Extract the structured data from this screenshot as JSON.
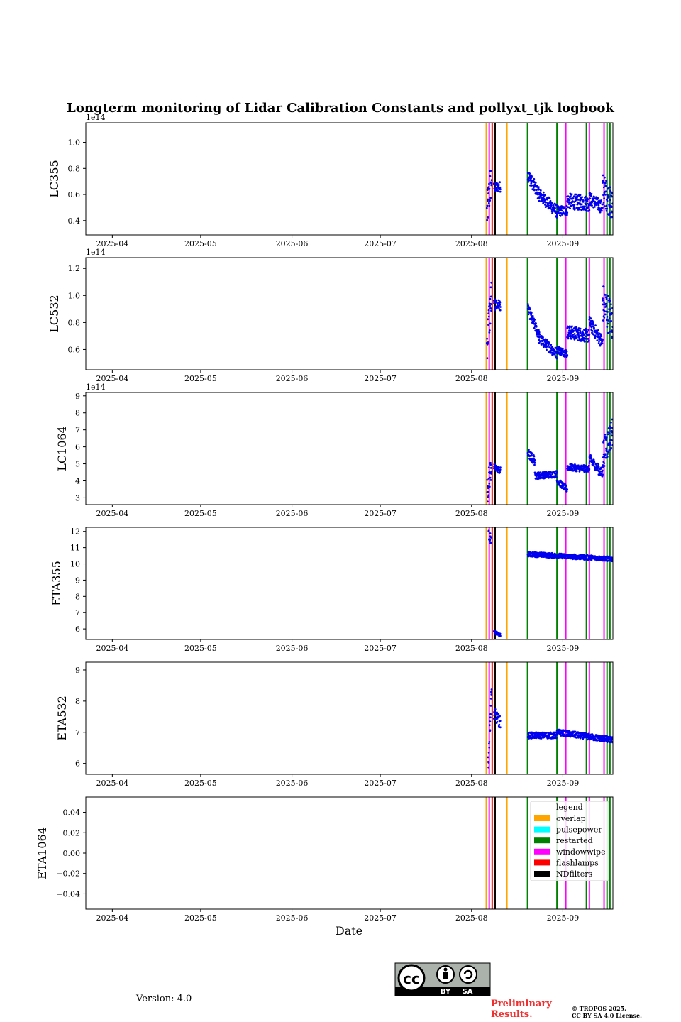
{
  "title": "Longterm monitoring of Lidar Calibration Constants and pollyxt_tjk logbook",
  "x_axis": {
    "label": "Date",
    "ticks": [
      {
        "day": 0,
        "label": "2025-04"
      },
      {
        "day": 30,
        "label": "2025-05"
      },
      {
        "day": 61,
        "label": "2025-06"
      },
      {
        "day": 91,
        "label": "2025-07"
      },
      {
        "day": 122,
        "label": "2025-08"
      },
      {
        "day": 153,
        "label": "2025-09"
      }
    ],
    "range_days": [
      -9,
      170
    ]
  },
  "logbook_events": {
    "overlap": {
      "color": "#ffa500",
      "days": [
        127,
        130,
        134
      ]
    },
    "restarted": {
      "color": "#008000",
      "days": [
        141,
        151,
        161,
        168,
        169
      ]
    },
    "windowwipe": {
      "color": "#ff00ff",
      "days": [
        128,
        154,
        162,
        167
      ]
    },
    "flashlamps": {
      "color": "#ff0000",
      "days": [
        129
      ]
    },
    "NDfilters": {
      "color": "#000000",
      "days": [
        130
      ]
    }
  },
  "legend": {
    "title": "legend",
    "items": [
      {
        "label": "overlap",
        "color": "#ffa500"
      },
      {
        "label": "pulsepower",
        "color": "#00ffff"
      },
      {
        "label": "restarted",
        "color": "#008000"
      },
      {
        "label": "windowwipe",
        "color": "#ff00ff"
      },
      {
        "label": "flashlamps",
        "color": "#ff0000"
      },
      {
        "label": "NDfilters",
        "color": "#000000"
      }
    ]
  },
  "chart_data": [
    {
      "type": "scatter",
      "ylabel": "LC355",
      "exponent": "1e14",
      "ylim": [
        0.29,
        1.15
      ],
      "yticks": [
        {
          "v": 0.4,
          "t": "0.4"
        },
        {
          "v": 0.6,
          "t": "0.6"
        },
        {
          "v": 0.8,
          "t": "0.8"
        },
        {
          "v": 1.0,
          "t": "1.0"
        }
      ],
      "segments": [
        {
          "from": 127.2,
          "to": 128.8,
          "start": 0.45,
          "end": 0.75,
          "noise": 0.15
        },
        {
          "from": 129.6,
          "to": 131.8,
          "start": 0.65,
          "end": 0.66,
          "noise": 0.04
        },
        {
          "from": 141.1,
          "to": 145.0,
          "start": 0.75,
          "end": 0.6,
          "noise": 0.05
        },
        {
          "from": 145.0,
          "to": 151.0,
          "start": 0.6,
          "end": 0.47,
          "noise": 0.05
        },
        {
          "from": 151.0,
          "to": 154.5,
          "start": 0.47,
          "end": 0.48,
          "noise": 0.04
        },
        {
          "from": 154.5,
          "to": 162.0,
          "start": 0.55,
          "end": 0.53,
          "noise": 0.06
        },
        {
          "from": 162.0,
          "to": 166.5,
          "start": 0.57,
          "end": 0.5,
          "noise": 0.05
        },
        {
          "from": 166.5,
          "to": 170.0,
          "start": 0.65,
          "end": 0.5,
          "noise": 0.12
        }
      ]
    },
    {
      "type": "scatter",
      "ylabel": "LC532",
      "exponent": "1e14",
      "ylim": [
        0.45,
        1.28
      ],
      "yticks": [
        {
          "v": 0.6,
          "t": "0.6"
        },
        {
          "v": 0.8,
          "t": "0.8"
        },
        {
          "v": 1.0,
          "t": "1.0"
        },
        {
          "v": 1.2,
          "t": "1.2"
        }
      ],
      "segments": [
        {
          "from": 127.2,
          "to": 128.8,
          "start": 0.65,
          "end": 1.0,
          "noise": 0.15
        },
        {
          "from": 129.6,
          "to": 131.8,
          "start": 0.93,
          "end": 0.93,
          "noise": 0.04
        },
        {
          "from": 141.1,
          "to": 145.0,
          "start": 0.9,
          "end": 0.7,
          "noise": 0.04
        },
        {
          "from": 145.0,
          "to": 151.0,
          "start": 0.68,
          "end": 0.57,
          "noise": 0.04
        },
        {
          "from": 151.0,
          "to": 154.5,
          "start": 0.6,
          "end": 0.57,
          "noise": 0.03
        },
        {
          "from": 154.5,
          "to": 162.0,
          "start": 0.73,
          "end": 0.7,
          "noise": 0.05
        },
        {
          "from": 162.0,
          "to": 166.5,
          "start": 0.8,
          "end": 0.65,
          "noise": 0.05
        },
        {
          "from": 166.5,
          "to": 170.0,
          "start": 0.95,
          "end": 0.8,
          "noise": 0.15
        }
      ]
    },
    {
      "type": "scatter",
      "ylabel": "LC1064",
      "exponent": "1e14",
      "ylim": [
        2.6,
        9.2
      ],
      "yticks": [
        {
          "v": 3,
          "t": "3"
        },
        {
          "v": 4,
          "t": "4"
        },
        {
          "v": 5,
          "t": "5"
        },
        {
          "v": 6,
          "t": "6"
        },
        {
          "v": 7,
          "t": "7"
        },
        {
          "v": 8,
          "t": "8"
        },
        {
          "v": 9,
          "t": "9"
        }
      ],
      "segments": [
        {
          "from": 127.2,
          "to": 128.8,
          "start": 3.3,
          "end": 5.0,
          "noise": 0.8
        },
        {
          "from": 129.6,
          "to": 131.8,
          "start": 4.8,
          "end": 4.6,
          "noise": 0.2
        },
        {
          "from": 141.1,
          "to": 143.5,
          "start": 5.6,
          "end": 5.2,
          "noise": 0.3
        },
        {
          "from": 143.5,
          "to": 151.0,
          "start": 4.3,
          "end": 4.4,
          "noise": 0.2
        },
        {
          "from": 151.0,
          "to": 154.5,
          "start": 4.0,
          "end": 3.5,
          "noise": 0.2
        },
        {
          "from": 154.5,
          "to": 162.0,
          "start": 4.8,
          "end": 4.7,
          "noise": 0.2
        },
        {
          "from": 162.0,
          "to": 166.5,
          "start": 5.3,
          "end": 4.4,
          "noise": 0.3
        },
        {
          "from": 166.5,
          "to": 170.0,
          "start": 5.5,
          "end": 7.0,
          "noise": 0.9
        }
      ]
    },
    {
      "type": "scatter",
      "ylabel": "ETA355",
      "exponent": "",
      "ylim": [
        5.35,
        12.25
      ],
      "yticks": [
        {
          "v": 6,
          "t": "6"
        },
        {
          "v": 7,
          "t": "7"
        },
        {
          "v": 8,
          "t": "8"
        },
        {
          "v": 9,
          "t": "9"
        },
        {
          "v": 10,
          "t": "10"
        },
        {
          "v": 11,
          "t": "11"
        },
        {
          "v": 12,
          "t": "12"
        }
      ],
      "segments": [
        {
          "from": 127.8,
          "to": 128.6,
          "start": 11.8,
          "end": 11.5,
          "noise": 0.3
        },
        {
          "from": 129.6,
          "to": 131.8,
          "start": 5.8,
          "end": 5.6,
          "noise": 0.1
        },
        {
          "from": 141.1,
          "to": 151.0,
          "start": 10.6,
          "end": 10.5,
          "noise": 0.15
        },
        {
          "from": 151.0,
          "to": 170.0,
          "start": 10.5,
          "end": 10.3,
          "noise": 0.15
        }
      ]
    },
    {
      "type": "scatter",
      "ylabel": "ETA532",
      "exponent": "",
      "ylim": [
        5.65,
        9.25
      ],
      "yticks": [
        {
          "v": 6,
          "t": "6"
        },
        {
          "v": 7,
          "t": "7"
        },
        {
          "v": 8,
          "t": "8"
        },
        {
          "v": 9,
          "t": "9"
        }
      ],
      "segments": [
        {
          "from": 127.6,
          "to": 128.8,
          "start": 5.9,
          "end": 8.3,
          "noise": 0.3
        },
        {
          "from": 129.6,
          "to": 131.8,
          "start": 7.6,
          "end": 7.3,
          "noise": 0.2
        },
        {
          "from": 141.1,
          "to": 151.0,
          "start": 6.9,
          "end": 6.9,
          "noise": 0.1
        },
        {
          "from": 151.0,
          "to": 170.0,
          "start": 7.0,
          "end": 6.75,
          "noise": 0.1
        }
      ]
    },
    {
      "type": "scatter",
      "ylabel": "ETA1064",
      "exponent": "",
      "ylim": [
        -0.055,
        0.055
      ],
      "yticks": [
        {
          "v": -0.04,
          "t": "−0.04"
        },
        {
          "v": -0.02,
          "t": "−0.02"
        },
        {
          "v": 0,
          "t": "0.00"
        },
        {
          "v": 0.02,
          "t": "0.02"
        },
        {
          "v": 0.04,
          "t": "0.04"
        }
      ],
      "segments": []
    }
  ],
  "footer": {
    "version": "Version: 4.0",
    "preliminary_line1": "Preliminary",
    "preliminary_line2": "Results.",
    "copyright_line1": "© TROPOS 2025.",
    "copyright_line2": "CC BY SA 4.0 License.",
    "license_badge": {
      "cc": "cc",
      "by": "BY",
      "sa": "SA"
    }
  }
}
